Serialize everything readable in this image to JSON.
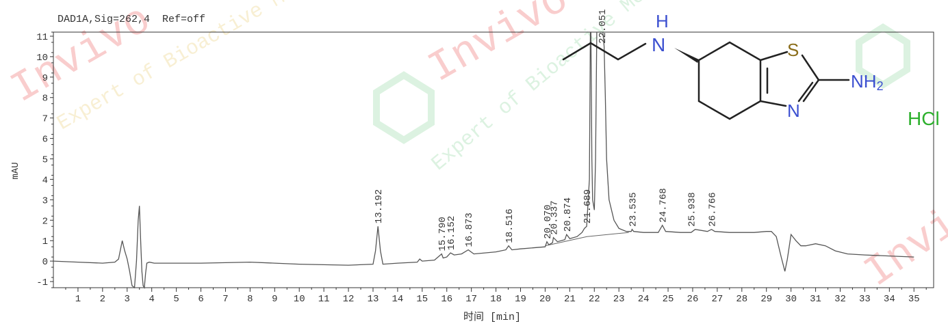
{
  "header": {
    "signal_label": "DAD1A,Sig=262,4  Ref=off"
  },
  "chart_data": {
    "type": "line",
    "xlabel": "时间 [min]",
    "ylabel": "mAU",
    "xlim": [
      0,
      35.8
    ],
    "ylim": [
      -1.3,
      11.2
    ],
    "x_ticks": [
      1,
      2,
      3,
      4,
      5,
      6,
      7,
      8,
      9,
      10,
      11,
      12,
      13,
      14,
      15,
      16,
      17,
      18,
      19,
      20,
      21,
      22,
      23,
      24,
      25,
      26,
      27,
      28,
      29,
      30,
      31,
      32,
      33,
      34,
      35
    ],
    "y_ticks": [
      -1,
      0,
      1,
      2,
      3,
      4,
      5,
      6,
      7,
      8,
      9,
      10,
      11
    ],
    "grid": false,
    "series": [
      {
        "x": [
          0.0,
          1.0,
          2.0,
          2.5,
          2.65,
          2.8,
          2.9,
          3.0,
          3.1,
          3.2,
          3.3,
          3.38,
          3.45,
          3.5,
          3.55,
          3.6,
          3.65,
          3.7,
          3.75,
          3.8,
          3.9,
          4.1,
          4.5,
          6.0,
          8.0,
          9.0,
          10.0,
          12.0,
          13.0,
          13.1,
          13.2,
          13.3,
          13.4,
          14.0,
          14.8,
          14.9,
          15.0,
          15.5,
          15.79,
          15.85,
          16.0,
          16.152,
          16.3,
          16.6,
          16.873,
          17.1,
          18.0,
          18.4,
          18.516,
          18.65,
          19.0,
          20.0,
          20.07,
          20.15,
          20.3,
          20.337,
          20.5,
          20.8,
          20.874,
          21.0,
          21.3,
          21.5,
          21.6,
          21.689,
          21.8,
          21.84,
          21.86,
          21.9,
          21.93,
          22.0,
          22.05,
          22.1,
          22.2,
          22.3,
          22.35,
          22.4,
          22.45,
          22.5,
          22.6,
          22.8,
          23.0,
          23.3,
          23.5,
          23.535,
          23.6,
          24.0,
          24.6,
          24.768,
          24.9,
          25.5,
          25.938,
          26.1,
          26.6,
          26.766,
          26.9,
          27.5,
          28.5,
          29.0,
          29.2,
          29.4,
          29.6,
          29.75,
          29.85,
          30.0,
          30.2,
          30.4,
          30.6,
          31.0,
          31.4,
          31.8,
          32.3,
          33.0,
          34.0,
          35.0
        ],
        "values": [
          0.0,
          -0.05,
          -0.1,
          -0.05,
          0.1,
          1.0,
          0.5,
          0.1,
          -0.5,
          -1.2,
          -1.3,
          0.0,
          2.0,
          2.7,
          1.0,
          -0.5,
          -1.2,
          -1.3,
          -0.6,
          -0.1,
          -0.05,
          -0.1,
          -0.1,
          -0.1,
          -0.05,
          -0.1,
          -0.15,
          -0.2,
          -0.15,
          0.5,
          1.7,
          0.5,
          -0.15,
          -0.1,
          -0.05,
          0.1,
          0.0,
          0.05,
          0.35,
          0.15,
          0.2,
          0.4,
          0.3,
          0.35,
          0.55,
          0.35,
          0.45,
          0.55,
          0.75,
          0.55,
          0.6,
          0.7,
          0.95,
          0.8,
          0.9,
          1.15,
          0.95,
          1.05,
          1.3,
          1.1,
          1.2,
          1.4,
          1.6,
          1.7,
          4.0,
          11.2,
          11.2,
          5.0,
          3.0,
          2.5,
          5.0,
          11.2,
          11.2,
          11.2,
          11.2,
          10.5,
          8.0,
          5.0,
          3.0,
          2.0,
          1.6,
          1.45,
          1.45,
          1.55,
          1.45,
          1.4,
          1.4,
          1.75,
          1.45,
          1.4,
          1.4,
          1.55,
          1.45,
          1.55,
          1.45,
          1.4,
          1.4,
          1.45,
          1.45,
          1.2,
          0.2,
          -0.5,
          0.1,
          1.3,
          1.0,
          0.75,
          0.75,
          0.85,
          0.75,
          0.5,
          0.35,
          0.3,
          0.25,
          0.2
        ]
      }
    ],
    "peak_labels": [
      {
        "x": 13.192,
        "y": 1.7,
        "label": "13.192"
      },
      {
        "x": 15.79,
        "y": 0.35,
        "label": "15.790"
      },
      {
        "x": 16.152,
        "y": 0.4,
        "label": "16.152"
      },
      {
        "x": 16.873,
        "y": 0.55,
        "label": "16.873"
      },
      {
        "x": 18.516,
        "y": 0.75,
        "label": "18.516"
      },
      {
        "x": 20.07,
        "y": 0.95,
        "label": "20.070"
      },
      {
        "x": 20.337,
        "y": 1.15,
        "label": "20.337"
      },
      {
        "x": 20.874,
        "y": 1.3,
        "label": "20.874"
      },
      {
        "x": 21.689,
        "y": 1.7,
        "label": "21.689"
      },
      {
        "x": 22.3,
        "y": 10.5,
        "label": "22.051"
      },
      {
        "x": 23.535,
        "y": 1.55,
        "label": "23.535"
      },
      {
        "x": 24.768,
        "y": 1.75,
        "label": "24.768"
      },
      {
        "x": 25.938,
        "y": 1.55,
        "label": "25.938"
      },
      {
        "x": 26.766,
        "y": 1.55,
        "label": "26.766"
      }
    ],
    "baseline_segments": [
      [
        [
          20.0,
          0.75
        ],
        [
          21.7,
          1.2
        ],
        [
          23.4,
          1.4
        ]
      ]
    ],
    "colors": {
      "trace": "#555555",
      "axis": "#333333"
    }
  },
  "molecule": {
    "n_label": "N",
    "h_label": "H",
    "s_label": "S",
    "ring_n_label": "N",
    "nh2_label": "NH",
    "nh2_sub": "2",
    "salt_label": "HCl",
    "colors": {
      "n": "#3b4fd0",
      "s": "#8a6d1a",
      "hcl": "#2db02d",
      "bond": "#222222"
    }
  },
  "watermark": {
    "brand": "Invivo",
    "slogan": "Expert of Bioactive Molecules",
    "colors": {
      "red": "#f4a5a5",
      "green": "#bfe8c8"
    }
  }
}
